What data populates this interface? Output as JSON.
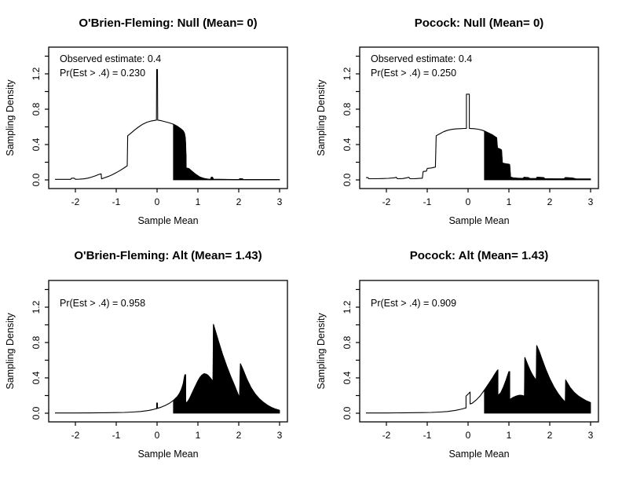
{
  "figure": {
    "background": "#ffffff",
    "foreground": "#000000",
    "layout": "2x2 R-style group-sequential sampling density plots"
  },
  "chart_data": [
    {
      "type": "area",
      "title": "O'Brien-Fleming: Null (Mean= 0)",
      "xlabel": "Sample Mean",
      "ylabel": "Sampling Density",
      "xlim": [
        -2.65,
        3.19
      ],
      "ylim": [
        -0.1,
        1.5
      ],
      "x_ticks": [
        -2,
        -1,
        0,
        1,
        2,
        3
      ],
      "y_ticks": [
        {
          "v": 0,
          "label": "0.0"
        },
        {
          "v": 0.2
        },
        {
          "v": 0.4,
          "label": "0.4"
        },
        {
          "v": 0.6
        },
        {
          "v": 0.8,
          "label": "0.8"
        },
        {
          "v": 1.0
        },
        {
          "v": 1.2,
          "label": "1.2"
        },
        {
          "v": 1.4
        }
      ],
      "annotations": [
        "Observed estimate: 0.4",
        "Pr(Est > .4) = 0.230"
      ],
      "shade_from_x": 0.4,
      "shade_color": "#000000",
      "curve": [
        [
          -2.5,
          0.006
        ],
        [
          -2.3,
          0.006
        ],
        [
          -2.12,
          0.006
        ],
        [
          -2.09,
          0.02
        ],
        [
          -2.03,
          0.02
        ],
        [
          -2.0,
          0.007
        ],
        [
          -1.9,
          0.008
        ],
        [
          -1.8,
          0.012
        ],
        [
          -1.7,
          0.02
        ],
        [
          -1.6,
          0.032
        ],
        [
          -1.5,
          0.048
        ],
        [
          -1.43,
          0.061
        ],
        [
          -1.37,
          0.068
        ],
        [
          -1.36,
          0.012
        ],
        [
          -1.3,
          0.022
        ],
        [
          -1.2,
          0.038
        ],
        [
          -1.1,
          0.058
        ],
        [
          -1.0,
          0.082
        ],
        [
          -0.9,
          0.108
        ],
        [
          -0.8,
          0.138
        ],
        [
          -0.73,
          0.16
        ],
        [
          -0.72,
          0.5
        ],
        [
          -0.65,
          0.525
        ],
        [
          -0.55,
          0.565
        ],
        [
          -0.45,
          0.6
        ],
        [
          -0.35,
          0.63
        ],
        [
          -0.25,
          0.652
        ],
        [
          -0.15,
          0.666
        ],
        [
          -0.05,
          0.674
        ],
        [
          -0.015,
          0.676
        ],
        [
          -0.01,
          1.25
        ],
        [
          0.01,
          1.25
        ],
        [
          0.015,
          0.676
        ],
        [
          0.1,
          0.67
        ],
        [
          0.2,
          0.658
        ],
        [
          0.3,
          0.645
        ],
        [
          0.4,
          0.63
        ],
        [
          0.5,
          0.605
        ],
        [
          0.6,
          0.572
        ],
        [
          0.64,
          0.555
        ],
        [
          0.67,
          0.53
        ],
        [
          0.69,
          0.48
        ],
        [
          0.7,
          0.4
        ],
        [
          0.705,
          0.3
        ],
        [
          0.71,
          0.285
        ],
        [
          0.712,
          0.135
        ],
        [
          0.78,
          0.128
        ],
        [
          0.85,
          0.1
        ],
        [
          0.95,
          0.062
        ],
        [
          1.05,
          0.032
        ],
        [
          1.15,
          0.016
        ],
        [
          1.25,
          0.009
        ],
        [
          1.31,
          0.007
        ],
        [
          1.33,
          0.032
        ],
        [
          1.36,
          0.028
        ],
        [
          1.38,
          0.007
        ],
        [
          1.5,
          0.006
        ],
        [
          1.7,
          0.005
        ],
        [
          1.9,
          0.004
        ],
        [
          2.0,
          0.004
        ],
        [
          2.03,
          0.014
        ],
        [
          2.09,
          0.012
        ],
        [
          2.12,
          0.004
        ],
        [
          2.4,
          0.004
        ],
        [
          2.7,
          0.004
        ],
        [
          3.0,
          0.004
        ]
      ]
    },
    {
      "type": "area",
      "title": "Pocock: Null (Mean= 0)",
      "xlabel": "Sample Mean",
      "ylabel": "Sampling Density",
      "xlim": [
        -2.65,
        3.19
      ],
      "ylim": [
        -0.1,
        1.5
      ],
      "x_ticks": [
        -2,
        -1,
        0,
        1,
        2,
        3
      ],
      "y_ticks": [
        {
          "v": 0,
          "label": "0.0"
        },
        {
          "v": 0.2
        },
        {
          "v": 0.4,
          "label": "0.4"
        },
        {
          "v": 0.6
        },
        {
          "v": 0.8,
          "label": "0.8"
        },
        {
          "v": 1.0
        },
        {
          "v": 1.2,
          "label": "1.2"
        },
        {
          "v": 1.4
        }
      ],
      "annotations": [
        "Observed estimate: 0.4",
        "Pr(Est > .4) = 0.250"
      ],
      "shade_from_x": 0.4,
      "shade_color": "#000000",
      "curve": [
        [
          -2.5,
          0.026
        ],
        [
          -2.45,
          0.026
        ],
        [
          -2.43,
          0.013
        ],
        [
          -2.3,
          0.013
        ],
        [
          -2.1,
          0.015
        ],
        [
          -1.95,
          0.018
        ],
        [
          -1.8,
          0.024
        ],
        [
          -1.76,
          0.03
        ],
        [
          -1.73,
          0.013
        ],
        [
          -1.6,
          0.015
        ],
        [
          -1.5,
          0.024
        ],
        [
          -1.45,
          0.03
        ],
        [
          -1.42,
          0.013
        ],
        [
          -1.3,
          0.014
        ],
        [
          -1.2,
          0.017
        ],
        [
          -1.12,
          0.02
        ],
        [
          -1.1,
          0.095
        ],
        [
          -1.02,
          0.1
        ],
        [
          -1.0,
          0.13
        ],
        [
          -0.9,
          0.135
        ],
        [
          -0.8,
          0.145
        ],
        [
          -0.78,
          0.5
        ],
        [
          -0.7,
          0.52
        ],
        [
          -0.6,
          0.545
        ],
        [
          -0.5,
          0.562
        ],
        [
          -0.4,
          0.572
        ],
        [
          -0.3,
          0.577
        ],
        [
          -0.2,
          0.58
        ],
        [
          -0.1,
          0.582
        ],
        [
          -0.04,
          0.583
        ],
        [
          -0.04,
          0.97
        ],
        [
          0.03,
          0.97
        ],
        [
          0.03,
          0.583
        ],
        [
          0.15,
          0.58
        ],
        [
          0.25,
          0.573
        ],
        [
          0.35,
          0.562
        ],
        [
          0.4,
          0.553
        ],
        [
          0.5,
          0.532
        ],
        [
          0.6,
          0.508
        ],
        [
          0.66,
          0.49
        ],
        [
          0.7,
          0.477
        ],
        [
          0.72,
          0.36
        ],
        [
          0.78,
          0.35
        ],
        [
          0.82,
          0.338
        ],
        [
          0.84,
          0.19
        ],
        [
          0.92,
          0.183
        ],
        [
          1.0,
          0.178
        ],
        [
          1.02,
          0.173
        ],
        [
          1.04,
          0.032
        ],
        [
          1.1,
          0.024
        ],
        [
          1.2,
          0.02
        ],
        [
          1.3,
          0.018
        ],
        [
          1.35,
          0.018
        ],
        [
          1.37,
          0.029
        ],
        [
          1.48,
          0.026
        ],
        [
          1.51,
          0.016
        ],
        [
          1.6,
          0.015
        ],
        [
          1.67,
          0.015
        ],
        [
          1.69,
          0.031
        ],
        [
          1.85,
          0.027
        ],
        [
          1.88,
          0.014
        ],
        [
          2.0,
          0.013
        ],
        [
          2.2,
          0.012
        ],
        [
          2.35,
          0.012
        ],
        [
          2.38,
          0.027
        ],
        [
          2.55,
          0.022
        ],
        [
          2.64,
          0.012
        ],
        [
          2.8,
          0.011
        ],
        [
          3.0,
          0.011
        ]
      ]
    },
    {
      "type": "area",
      "title": "O'Brien-Fleming: Alt (Mean= 1.43)",
      "xlabel": "Sample Mean",
      "ylabel": "Sampling Density",
      "xlim": [
        -2.65,
        3.19
      ],
      "ylim": [
        -0.1,
        1.5
      ],
      "x_ticks": [
        -2,
        -1,
        0,
        1,
        2,
        3
      ],
      "y_ticks": [
        {
          "v": 0,
          "label": "0.0"
        },
        {
          "v": 0.2
        },
        {
          "v": 0.4,
          "label": "0.4"
        },
        {
          "v": 0.6
        },
        {
          "v": 0.8,
          "label": "0.8"
        },
        {
          "v": 1.0
        },
        {
          "v": 1.2,
          "label": "1.2"
        },
        {
          "v": 1.4
        }
      ],
      "annotations": [
        "Pr(Est > .4) = 0.958"
      ],
      "shade_from_x": 0.4,
      "shade_color": "#000000",
      "curve": [
        [
          -2.5,
          0.003
        ],
        [
          -2.0,
          0.003
        ],
        [
          -1.6,
          0.004
        ],
        [
          -1.3,
          0.005
        ],
        [
          -1.0,
          0.007
        ],
        [
          -0.8,
          0.009
        ],
        [
          -0.6,
          0.013
        ],
        [
          -0.4,
          0.02
        ],
        [
          -0.2,
          0.032
        ],
        [
          -0.1,
          0.042
        ],
        [
          -0.05,
          0.048
        ],
        [
          -0.01,
          0.052
        ],
        [
          -0.01,
          0.115
        ],
        [
          0.01,
          0.115
        ],
        [
          0.01,
          0.055
        ],
        [
          0.1,
          0.068
        ],
        [
          0.2,
          0.088
        ],
        [
          0.3,
          0.112
        ],
        [
          0.4,
          0.145
        ],
        [
          0.5,
          0.19
        ],
        [
          0.55,
          0.225
        ],
        [
          0.6,
          0.275
        ],
        [
          0.64,
          0.335
        ],
        [
          0.67,
          0.41
        ],
        [
          0.68,
          0.435
        ],
        [
          0.7,
          0.435
        ],
        [
          0.7,
          0.115
        ],
        [
          0.75,
          0.132
        ],
        [
          0.8,
          0.17
        ],
        [
          0.9,
          0.27
        ],
        [
          1.0,
          0.365
        ],
        [
          1.05,
          0.405
        ],
        [
          1.1,
          0.432
        ],
        [
          1.15,
          0.447
        ],
        [
          1.2,
          0.443
        ],
        [
          1.25,
          0.428
        ],
        [
          1.3,
          0.402
        ],
        [
          1.35,
          0.372
        ],
        [
          1.37,
          0.36
        ],
        [
          1.38,
          1.005
        ],
        [
          1.42,
          0.945
        ],
        [
          1.5,
          0.82
        ],
        [
          1.6,
          0.67
        ],
        [
          1.7,
          0.54
        ],
        [
          1.8,
          0.42
        ],
        [
          1.9,
          0.31
        ],
        [
          1.97,
          0.23
        ],
        [
          2.02,
          0.175
        ],
        [
          2.04,
          0.56
        ],
        [
          2.1,
          0.5
        ],
        [
          2.2,
          0.385
        ],
        [
          2.3,
          0.29
        ],
        [
          2.4,
          0.22
        ],
        [
          2.5,
          0.165
        ],
        [
          2.6,
          0.125
        ],
        [
          2.7,
          0.092
        ],
        [
          2.8,
          0.066
        ],
        [
          2.9,
          0.047
        ],
        [
          3.0,
          0.033
        ]
      ]
    },
    {
      "type": "area",
      "title": "Pocock: Alt (Mean= 1.43)",
      "xlabel": "Sample Mean",
      "ylabel": "Sampling Density",
      "xlim": [
        -2.65,
        3.19
      ],
      "ylim": [
        -0.1,
        1.5
      ],
      "x_ticks": [
        -2,
        -1,
        0,
        1,
        2,
        3
      ],
      "y_ticks": [
        {
          "v": 0,
          "label": "0.0"
        },
        {
          "v": 0.2
        },
        {
          "v": 0.4,
          "label": "0.4"
        },
        {
          "v": 0.6
        },
        {
          "v": 0.8,
          "label": "0.8"
        },
        {
          "v": 1.0
        },
        {
          "v": 1.2,
          "label": "1.2"
        },
        {
          "v": 1.4
        }
      ],
      "annotations": [
        "Pr(Est > .4) = 0.909"
      ],
      "shade_from_x": 0.4,
      "shade_color": "#000000",
      "curve": [
        [
          -2.5,
          0.003
        ],
        [
          -2.0,
          0.003
        ],
        [
          -1.5,
          0.005
        ],
        [
          -1.1,
          0.007
        ],
        [
          -0.9,
          0.009
        ],
        [
          -0.7,
          0.013
        ],
        [
          -0.5,
          0.02
        ],
        [
          -0.3,
          0.033
        ],
        [
          -0.15,
          0.048
        ],
        [
          -0.08,
          0.057
        ],
        [
          -0.05,
          0.06
        ],
        [
          -0.05,
          0.195
        ],
        [
          0.0,
          0.215
        ],
        [
          0.05,
          0.24
        ],
        [
          0.05,
          0.105
        ],
        [
          0.1,
          0.113
        ],
        [
          0.2,
          0.15
        ],
        [
          0.3,
          0.198
        ],
        [
          0.4,
          0.262
        ],
        [
          0.5,
          0.33
        ],
        [
          0.6,
          0.4
        ],
        [
          0.66,
          0.445
        ],
        [
          0.71,
          0.48
        ],
        [
          0.73,
          0.49
        ],
        [
          0.73,
          0.2
        ],
        [
          0.8,
          0.23
        ],
        [
          0.87,
          0.3
        ],
        [
          0.93,
          0.375
        ],
        [
          0.98,
          0.445
        ],
        [
          1.0,
          0.47
        ],
        [
          1.02,
          0.47
        ],
        [
          1.02,
          0.155
        ],
        [
          1.1,
          0.178
        ],
        [
          1.18,
          0.195
        ],
        [
          1.25,
          0.203
        ],
        [
          1.32,
          0.202
        ],
        [
          1.38,
          0.193
        ],
        [
          1.39,
          0.63
        ],
        [
          1.45,
          0.56
        ],
        [
          1.52,
          0.485
        ],
        [
          1.58,
          0.43
        ],
        [
          1.64,
          0.39
        ],
        [
          1.67,
          0.372
        ],
        [
          1.68,
          0.765
        ],
        [
          1.75,
          0.69
        ],
        [
          1.82,
          0.6
        ],
        [
          1.9,
          0.5
        ],
        [
          2.0,
          0.39
        ],
        [
          2.1,
          0.3
        ],
        [
          2.2,
          0.225
        ],
        [
          2.3,
          0.165
        ],
        [
          2.36,
          0.135
        ],
        [
          2.38,
          0.125
        ],
        [
          2.39,
          0.375
        ],
        [
          2.5,
          0.29
        ],
        [
          2.6,
          0.235
        ],
        [
          2.7,
          0.195
        ],
        [
          2.8,
          0.165
        ],
        [
          2.9,
          0.14
        ],
        [
          3.0,
          0.12
        ]
      ]
    }
  ]
}
